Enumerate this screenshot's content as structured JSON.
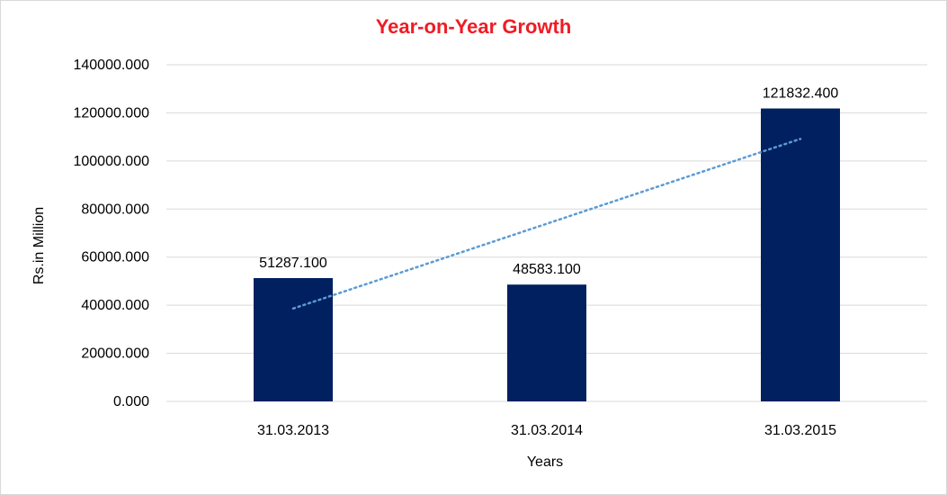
{
  "chart_data": {
    "type": "bar",
    "title": "Year-on-Year Growth",
    "xlabel": "Years",
    "ylabel": "Rs.in Million",
    "categories": [
      "31.03.2013",
      "31.03.2014",
      "31.03.2015"
    ],
    "values": [
      51287.1,
      48583.1,
      121832.4
    ],
    "data_labels": [
      "51287.100",
      "48583.100",
      "121832.400"
    ],
    "yticks": [
      0,
      20000,
      40000,
      60000,
      80000,
      100000,
      120000,
      140000
    ],
    "ytick_labels": [
      "0.000",
      "20000.000",
      "40000.000",
      "60000.000",
      "80000.000",
      "100000.000",
      "120000.000",
      "140000.000"
    ],
    "ylim": [
      0,
      140000
    ],
    "trendline": {
      "type": "linear",
      "style": "dotted",
      "color": "#5b9bd5"
    },
    "grid": true,
    "legend": "none",
    "colors": {
      "bar": "#002060",
      "title": "#ee1c25",
      "grid": "#d9d9d9"
    }
  }
}
